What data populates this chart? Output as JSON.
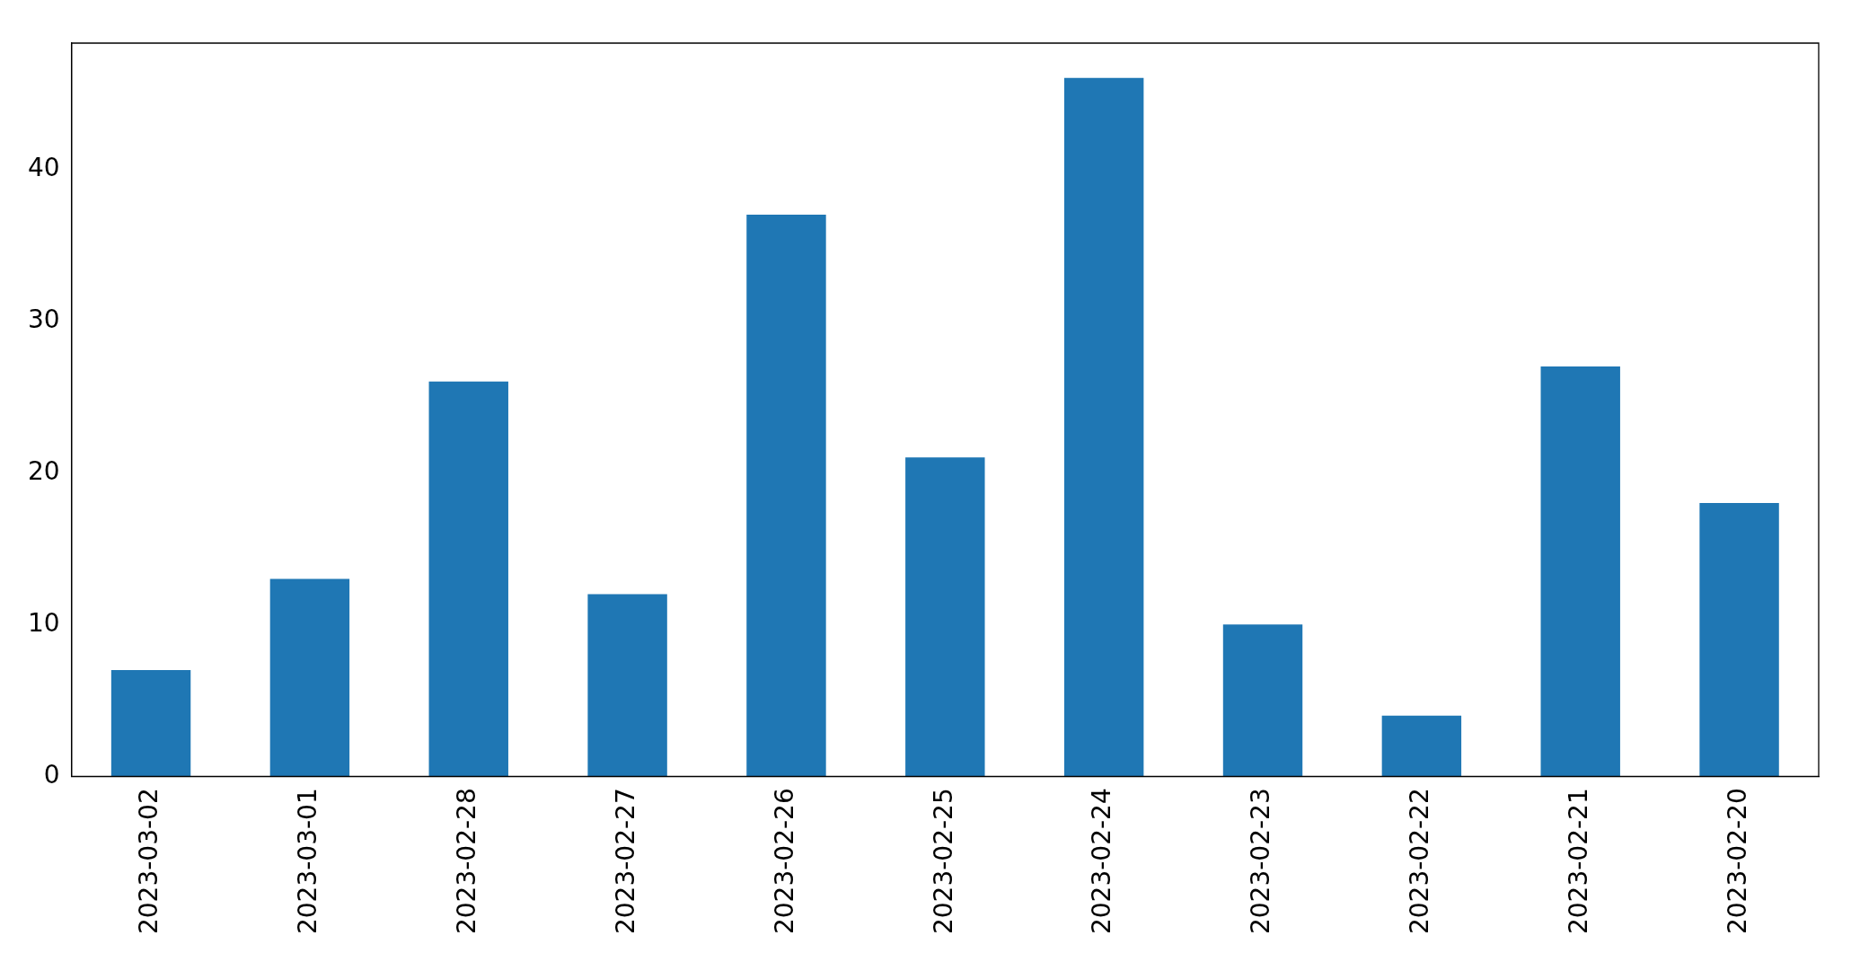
{
  "chart_data": {
    "type": "bar",
    "categories": [
      "2023-03-02",
      "2023-03-01",
      "2023-02-28",
      "2023-02-27",
      "2023-02-26",
      "2023-02-25",
      "2023-02-24",
      "2023-02-23",
      "2023-02-22",
      "2023-02-21",
      "2023-02-20"
    ],
    "values": [
      7,
      13,
      26,
      12,
      37,
      21,
      46,
      10,
      4,
      27,
      18
    ],
    "color": "#1f77b4",
    "ylim": [
      0,
      48.3
    ],
    "yticks": [
      0,
      10,
      20,
      30,
      40
    ],
    "grid": false,
    "legend": false
  }
}
